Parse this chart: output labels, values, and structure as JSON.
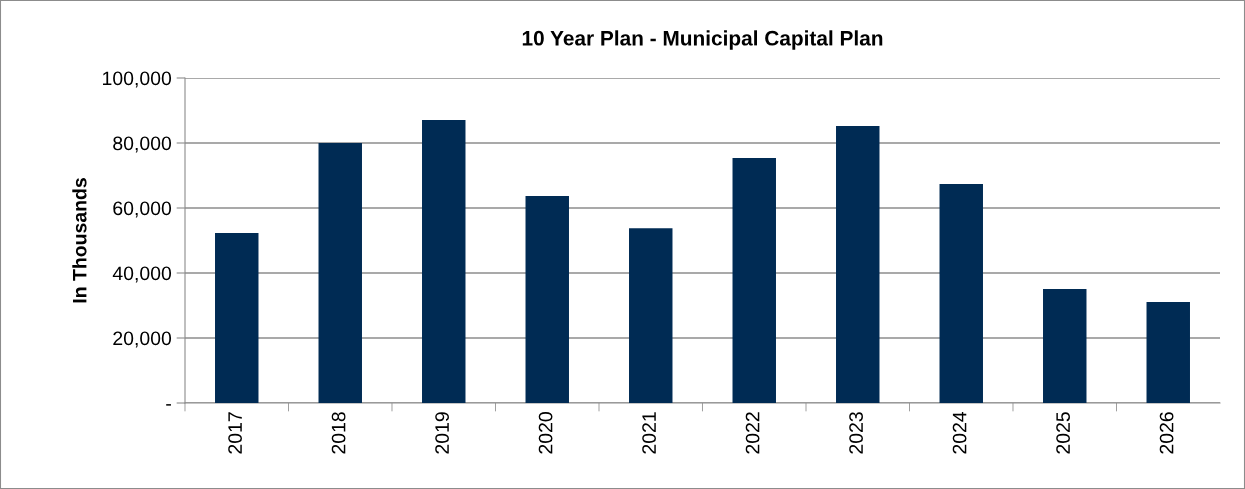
{
  "chart_data": {
    "type": "bar",
    "title": "10 Year Plan - Municipal Capital Plan",
    "ylabel": "In Thousands",
    "categories": [
      "2017",
      "2018",
      "2019",
      "2020",
      "2021",
      "2022",
      "2023",
      "2024",
      "2025",
      "2026"
    ],
    "values": [
      52300,
      80000,
      87100,
      63700,
      53800,
      75400,
      85200,
      67400,
      35100,
      31100
    ],
    "color": "#002b54",
    "ylim": [
      0,
      100000
    ],
    "yticks": [
      {
        "value": 0,
        "label": "-"
      },
      {
        "value": 20000,
        "label": "20,000"
      },
      {
        "value": 40000,
        "label": "40,000"
      },
      {
        "value": 60000,
        "label": "60,000"
      },
      {
        "value": 80000,
        "label": "80,000"
      },
      {
        "value": 100000,
        "label": "100,000"
      }
    ],
    "grid": "y"
  }
}
